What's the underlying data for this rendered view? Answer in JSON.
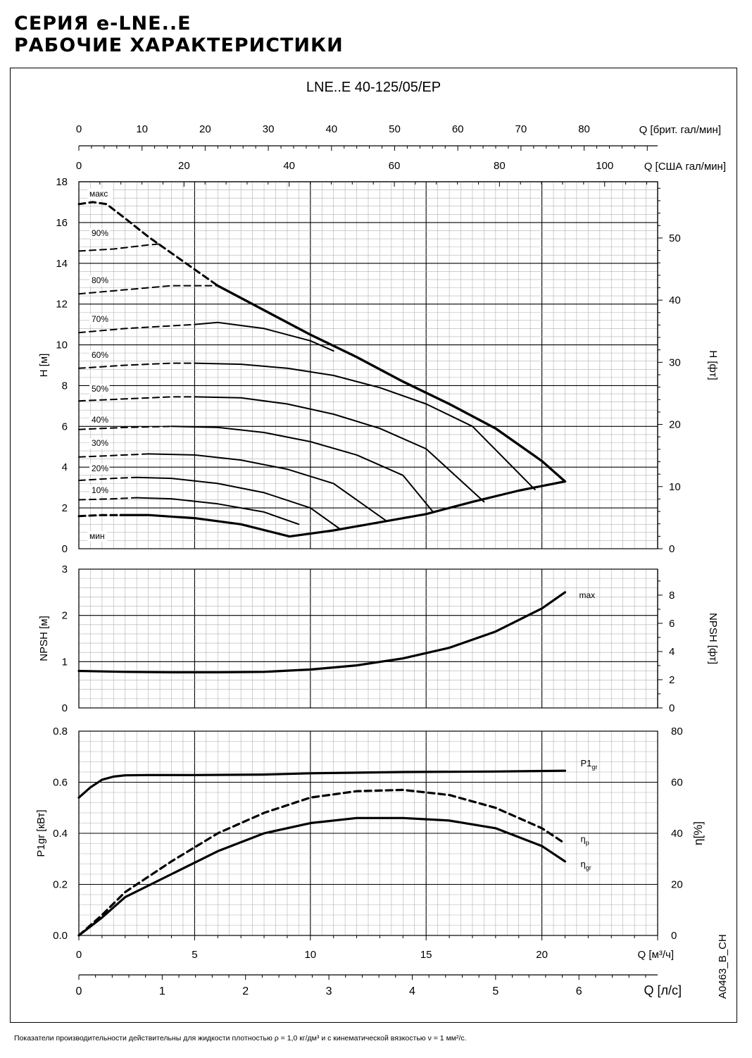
{
  "header": {
    "title_line1": "СЕРИЯ e-LNE..E",
    "title_line2": "РАБОЧИЕ ХАРАКТЕРИСТИКИ"
  },
  "model_title": "LNE..E 40-125/05/EP",
  "footnote": "Показатели производительности действительны для жидкости плотностью ρ = 1,0 кг/дм³ и с кинематической вязкостью ν = 1 мм²/с.",
  "doc_code": "A0463_B_CH",
  "chart_data": {
    "type": "line",
    "x_axes": {
      "q_m3h": {
        "label": "Q [м³/ч]",
        "range": [
          0,
          25
        ],
        "ticks": [
          0,
          5,
          10,
          15,
          20
        ]
      },
      "q_ls": {
        "label": "Q [л/с]",
        "ticks": [
          0,
          1,
          2,
          3,
          4,
          5,
          6
        ],
        "factor_m3h": 3.6
      },
      "q_usgpm": {
        "label": "Q [США гал/мин]",
        "ticks": [
          0,
          20,
          40,
          60,
          80,
          100
        ],
        "factor_m3h": 0.2271
      },
      "q_ukgpm": {
        "label": "Q [брит. гал/мин]",
        "ticks": [
          0,
          10,
          20,
          30,
          40,
          50,
          60,
          70,
          80
        ],
        "factor_m3h": 0.2728
      }
    },
    "head": {
      "ylabel": "H [м]",
      "ylabel_right": "H [фт]",
      "ylim": [
        0,
        18
      ],
      "yticks": [
        0,
        2,
        4,
        6,
        8,
        10,
        12,
        14,
        16,
        18
      ],
      "yticks_right": [
        0,
        10,
        20,
        30,
        40,
        50
      ],
      "max_curve": {
        "label": "макс",
        "dashed": [
          [
            0,
            16.9
          ],
          [
            0.6,
            17
          ],
          [
            1.2,
            16.9
          ],
          [
            2,
            16.2
          ],
          [
            3,
            15.3
          ],
          [
            4,
            14.5
          ],
          [
            5,
            13.7
          ],
          [
            6,
            12.9
          ]
        ],
        "solid": [
          [
            6,
            12.9
          ],
          [
            8,
            11.7
          ],
          [
            10,
            10.5
          ],
          [
            12,
            9.4
          ],
          [
            14,
            8.2
          ],
          [
            16,
            7.1
          ],
          [
            18,
            5.9
          ],
          [
            20,
            4.3
          ],
          [
            21,
            3.3
          ]
        ]
      },
      "speed_curves": [
        {
          "label": "90%",
          "dashed": [
            [
              0,
              14.6
            ],
            [
              1.5,
              14.7
            ],
            [
              3,
              14.9
            ],
            [
              3.5,
              14.95
            ]
          ],
          "solid": []
        },
        {
          "label": "80%",
          "dashed": [
            [
              0,
              12.5
            ],
            [
              2,
              12.7
            ],
            [
              4,
              12.9
            ],
            [
              6,
              12.9
            ]
          ],
          "solid": []
        },
        {
          "label": "70%",
          "dashed": [
            [
              0,
              10.6
            ],
            [
              2,
              10.8
            ],
            [
              5,
              11.0
            ]
          ],
          "solid": [
            [
              5,
              11.0
            ],
            [
              6,
              11.1
            ],
            [
              8,
              10.8
            ],
            [
              10,
              10.2
            ],
            [
              11,
              9.7
            ]
          ]
        },
        {
          "label": "60%",
          "dashed": [
            [
              0,
              8.85
            ],
            [
              2,
              9.0
            ],
            [
              4,
              9.1
            ],
            [
              5,
              9.1
            ]
          ],
          "solid": [
            [
              5,
              9.1
            ],
            [
              7,
              9.05
            ],
            [
              9,
              8.85
            ],
            [
              11,
              8.5
            ],
            [
              13,
              7.9
            ],
            [
              15,
              7.1
            ],
            [
              17,
              6.0
            ],
            [
              19.7,
              2.9
            ]
          ]
        },
        {
          "label": "50%",
          "dashed": [
            [
              0,
              7.25
            ],
            [
              2,
              7.35
            ],
            [
              4,
              7.45
            ],
            [
              5,
              7.45
            ]
          ],
          "solid": [
            [
              5,
              7.45
            ],
            [
              7,
              7.4
            ],
            [
              9,
              7.1
            ],
            [
              11,
              6.6
            ],
            [
              13,
              5.9
            ],
            [
              15,
              4.9
            ],
            [
              17.5,
              2.3
            ]
          ]
        },
        {
          "label": "40%",
          "dashed": [
            [
              0,
              5.85
            ],
            [
              2,
              5.95
            ],
            [
              4,
              6.0
            ]
          ],
          "solid": [
            [
              4,
              6.0
            ],
            [
              6,
              5.95
            ],
            [
              8,
              5.7
            ],
            [
              10,
              5.25
            ],
            [
              12,
              4.6
            ],
            [
              14,
              3.6
            ],
            [
              15.3,
              1.8
            ]
          ]
        },
        {
          "label": "30%",
          "dashed": [
            [
              0,
              4.5
            ],
            [
              2,
              4.6
            ],
            [
              3,
              4.65
            ]
          ],
          "solid": [
            [
              3,
              4.65
            ],
            [
              5,
              4.6
            ],
            [
              7,
              4.35
            ],
            [
              9,
              3.9
            ],
            [
              11,
              3.2
            ],
            [
              13.3,
              1.35
            ]
          ]
        },
        {
          "label": "20%",
          "dashed": [
            [
              0,
              3.35
            ],
            [
              1.5,
              3.45
            ],
            [
              2.5,
              3.5
            ]
          ],
          "solid": [
            [
              2.5,
              3.5
            ],
            [
              4,
              3.45
            ],
            [
              6,
              3.2
            ],
            [
              8,
              2.75
            ],
            [
              10,
              2.0
            ],
            [
              11.3,
              0.95
            ]
          ]
        },
        {
          "label": "10%",
          "dashed": [
            [
              0,
              2.4
            ],
            [
              1.5,
              2.45
            ],
            [
              2.5,
              2.5
            ]
          ],
          "solid": [
            [
              2.5,
              2.5
            ],
            [
              4,
              2.45
            ],
            [
              6,
              2.2
            ],
            [
              8,
              1.8
            ],
            [
              9.5,
              1.2
            ]
          ]
        }
      ],
      "min_curve": {
        "label": "мин",
        "dashed": [
          [
            0,
            1.6
          ],
          [
            1,
            1.65
          ],
          [
            1.8,
            1.65
          ]
        ],
        "solid": [
          [
            1.8,
            1.65
          ],
          [
            3,
            1.65
          ],
          [
            5,
            1.5
          ],
          [
            7,
            1.2
          ],
          [
            9.1,
            0.6
          ]
        ]
      },
      "limit_curve": [
        [
          9.1,
          0.6
        ],
        [
          11,
          0.9
        ],
        [
          13,
          1.3
        ],
        [
          15,
          1.7
        ],
        [
          17,
          2.3
        ],
        [
          19,
          2.85
        ],
        [
          21,
          3.3
        ]
      ]
    },
    "npsh": {
      "ylabel": "NPSH [м]",
      "ylabel_right": "NPSH [фт]",
      "ylim": [
        0,
        3
      ],
      "yticks": [
        0,
        1,
        2,
        3
      ],
      "yticks_right": [
        0,
        2,
        4,
        6,
        8
      ],
      "series": [
        {
          "name": "max",
          "values": [
            [
              0,
              0.8
            ],
            [
              2,
              0.78
            ],
            [
              4,
              0.77
            ],
            [
              6,
              0.77
            ],
            [
              8,
              0.78
            ],
            [
              10,
              0.83
            ],
            [
              12,
              0.92
            ],
            [
              14,
              1.07
            ],
            [
              16,
              1.3
            ],
            [
              18,
              1.65
            ],
            [
              20,
              2.15
            ],
            [
              21,
              2.5
            ]
          ]
        }
      ]
    },
    "power": {
      "ylabel": "P1gr [кВт]",
      "ylabel_right": "η[%]",
      "ylim": [
        0,
        0.8
      ],
      "yticks": [
        0.0,
        0.2,
        0.4,
        0.6,
        0.8
      ],
      "ylim_right": [
        0,
        80
      ],
      "yticks_right": [
        0,
        20,
        40,
        60,
        80
      ],
      "series": [
        {
          "name": "P1",
          "sub": "gr",
          "axis": "left",
          "dashed": false,
          "values": [
            [
              0,
              0.54
            ],
            [
              0.5,
              0.58
            ],
            [
              1,
              0.61
            ],
            [
              1.5,
              0.622
            ],
            [
              2,
              0.627
            ],
            [
              3,
              0.628
            ],
            [
              5,
              0.628
            ],
            [
              8,
              0.63
            ],
            [
              10,
              0.635
            ],
            [
              14,
              0.64
            ],
            [
              18,
              0.642
            ],
            [
              21,
              0.645
            ]
          ]
        },
        {
          "name": "η",
          "sub": "p",
          "axis": "right",
          "dashed": true,
          "values": [
            [
              0,
              0
            ],
            [
              1,
              8
            ],
            [
              2,
              17
            ],
            [
              4,
              29
            ],
            [
              6,
              40
            ],
            [
              8,
              48
            ],
            [
              10,
              54
            ],
            [
              12,
              56.5
            ],
            [
              14,
              57
            ],
            [
              16,
              55
            ],
            [
              18,
              50
            ],
            [
              20,
              42
            ],
            [
              21,
              36
            ]
          ]
        },
        {
          "name": "η",
          "sub": "gr",
          "axis": "right",
          "dashed": false,
          "values": [
            [
              0,
              0
            ],
            [
              1,
              7
            ],
            [
              2,
              15
            ],
            [
              4,
              24
            ],
            [
              6,
              33
            ],
            [
              8,
              40
            ],
            [
              10,
              44
            ],
            [
              12,
              46
            ],
            [
              14,
              46
            ],
            [
              16,
              45
            ],
            [
              18,
              42
            ],
            [
              20,
              35
            ],
            [
              21,
              29
            ]
          ]
        }
      ]
    },
    "styles": {
      "line_color": "#000000",
      "major_grid_color": "#000000",
      "minor_grid_color": "#b0b0b0"
    }
  }
}
